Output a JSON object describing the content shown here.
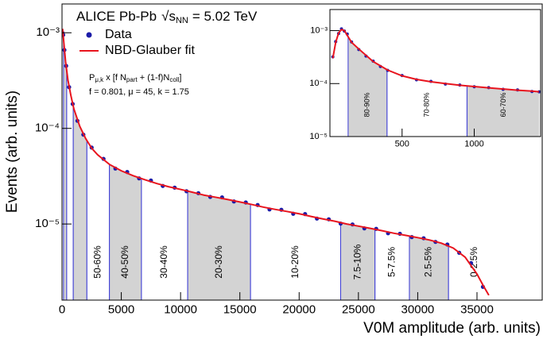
{
  "chart_data": [
    {
      "type": "line",
      "title": "ALICE Pb-Pb",
      "title_sqrt": "√s",
      "title_sub": "NN",
      "title_energy": "= 5.02 TeV",
      "formula": [
        {
          "text": "P",
          "sub": "μ,k"
        },
        {
          "text": " x [f N",
          "sub": "part"
        },
        {
          "text": " + (1-f)N",
          "sub": "coll"
        },
        {
          "text": "]"
        }
      ],
      "parameters": "f = 0.801, μ = 45, k = 1.75",
      "xlabel": "V0M amplitude (arb. units)",
      "ylabel": "Events (arb. units)",
      "xlim": [
        0,
        40500
      ],
      "ylim": [
        1.6e-06,
        0.002
      ],
      "log_y": true,
      "xticks": [
        0,
        5000,
        10000,
        15000,
        20000,
        25000,
        30000,
        35000
      ],
      "yticks": [
        {
          "value": 1e-05,
          "label": "10⁻⁵"
        },
        {
          "value": 0.0001,
          "label": "10⁻⁴"
        },
        {
          "value": 0.001,
          "label": "10⁻³"
        }
      ],
      "legend": "upper left",
      "class_fill": "#d3d3d3",
      "class_edge": "#3b3bd6",
      "classes": [
        {
          "label": null,
          "from": 126,
          "to": 396,
          "shaded": true
        },
        {
          "label": null,
          "from": 396,
          "to": 950,
          "shaded": false
        },
        {
          "label": null,
          "from": 950,
          "to": 2100,
          "shaded": true
        },
        {
          "label": "50-60%",
          "from": 2100,
          "to": 4000,
          "shaded": false
        },
        {
          "label": "40-50%",
          "from": 4000,
          "to": 6700,
          "shaded": true
        },
        {
          "label": "30-40%",
          "from": 6700,
          "to": 10600,
          "shaded": false
        },
        {
          "label": "20-30%",
          "from": 10600,
          "to": 15900,
          "shaded": true
        },
        {
          "label": "10-20%",
          "from": 15900,
          "to": 23500,
          "shaded": false
        },
        {
          "label": "7.5-10%",
          "from": 23500,
          "to": 26400,
          "shaded": true
        },
        {
          "label": "5-7.5%",
          "from": 26400,
          "to": 29300,
          "shaded": false
        },
        {
          "label": "2.5-5%",
          "from": 29300,
          "to": 32600,
          "shaded": true
        },
        {
          "label": "0-2.5%",
          "from": 32600,
          "to": 37000,
          "shaded": false
        }
      ],
      "series": [
        {
          "name": "Data",
          "color": "#1c1ca8",
          "style": "points",
          "x": [
            30,
            100,
            200,
            350,
            600,
            900,
            1300,
            1800,
            2500,
            3500,
            4500,
            5500,
            6500,
            7500,
            8500,
            9500,
            10500,
            11500,
            12500,
            13500,
            14500,
            15500,
            16500,
            17500,
            18500,
            19500,
            20500,
            21500,
            22500,
            23500,
            24500,
            25500,
            26500,
            27500,
            28500,
            29500,
            30500,
            31500,
            32500,
            33500,
            34500,
            35500
          ],
          "values": [
            0.001,
            0.00095,
            0.00066,
            0.00045,
            0.00027,
            0.00018,
            0.00012,
            8.6e-05,
            6.3e-05,
            4.8e-05,
            3.8e-05,
            3.5e-05,
            3e-05,
            2.85e-05,
            2.5e-05,
            2.4e-05,
            2.2e-05,
            2.1e-05,
            1.92e-05,
            1.9e-05,
            1.72e-05,
            1.68e-05,
            1.58e-05,
            1.42e-05,
            1.41e-05,
            1.28e-05,
            1.27e-05,
            1.14e-05,
            1.12e-05,
            1.01e-05,
            9.9e-06,
            9e-06,
            8.9e-06,
            8e-06,
            7.9e-06,
            7.3e-06,
            7.1e-06,
            6.5e-06,
            6.1e-06,
            5e-06,
            3.9e-06,
            2.2e-06
          ]
        },
        {
          "name": "NBD-Glauber fit",
          "color": "#e8141e",
          "style": "line",
          "x": [
            50,
            150,
            300,
            500,
            750,
            1000,
            1500,
            2000,
            2500,
            3000,
            4000,
            5000,
            6000,
            7000,
            8000,
            9000,
            10000,
            11000,
            12000,
            13000,
            14000,
            15000,
            16000,
            17000,
            18000,
            19000,
            20000,
            21000,
            22000,
            23000,
            24000,
            25000,
            26000,
            27000,
            28000,
            29000,
            30000,
            31000,
            32000,
            33000,
            34000,
            35000,
            35500,
            36000
          ],
          "values": [
            0.0011,
            0.0008,
            0.0005,
            0.00032,
            0.00022,
            0.00016,
            0.000105,
            7.8e-05,
            6.2e-05,
            5.3e-05,
            4.2e-05,
            3.6e-05,
            3.2e-05,
            2.9e-05,
            2.65e-05,
            2.45e-05,
            2.3e-05,
            2.15e-05,
            2e-05,
            1.9e-05,
            1.8e-05,
            1.7e-05,
            1.6e-05,
            1.5e-05,
            1.42e-05,
            1.35e-05,
            1.28e-05,
            1.2e-05,
            1.13e-05,
            1.07e-05,
            1e-05,
            9.5e-06,
            9e-06,
            8.5e-06,
            8e-06,
            7.6e-06,
            7.2e-06,
            6.8e-06,
            6.3e-06,
            5.6e-06,
            4.5e-06,
            3e-06,
            2.3e-06,
            1.8e-06
          ]
        }
      ]
    },
    {
      "type": "line",
      "xlim": [
        0,
        1460
      ],
      "ylim": [
        1e-05,
        0.0025
      ],
      "log_y": true,
      "xticks": [
        500,
        1000
      ],
      "yticks": [
        {
          "value": 1e-05,
          "label": "10⁻⁵"
        },
        {
          "value": 0.0001,
          "label": "10⁻⁴"
        },
        {
          "value": 0.001,
          "label": "10⁻³"
        }
      ],
      "class_fill": "#d3d3d3",
      "class_edge": "#3b3bd6",
      "classes": [
        {
          "label": "80-90%",
          "from": 126,
          "to": 396,
          "shaded": true
        },
        {
          "label": "70-80%",
          "from": 396,
          "to": 950,
          "shaded": false
        },
        {
          "label": "60-70%",
          "from": 950,
          "to": 2100,
          "shaded": true
        }
      ],
      "series": [
        {
          "name": "Data",
          "color": "#1c1ca8",
          "style": "points",
          "x": [
            20,
            40,
            60,
            80,
            100,
            120,
            150,
            200,
            250,
            300,
            350,
            400,
            500,
            600,
            700,
            800,
            900,
            1000,
            1100,
            1200,
            1300,
            1400,
            1450
          ],
          "values": [
            0.00032,
            0.00062,
            0.00088,
            0.00108,
            0.00098,
            0.00086,
            0.00061,
            0.00044,
            0.00033,
            0.000265,
            0.00021,
            0.000178,
            0.000142,
            0.000118,
            0.00011,
            9.8e-05,
            9.4e-05,
            8.7e-05,
            8.4e-05,
            7.8e-05,
            7.6e-05,
            7.1e-05,
            7e-05
          ]
        },
        {
          "name": "NBD-Glauber fit",
          "color": "#e8141e",
          "style": "line",
          "x": [
            20,
            40,
            60,
            80,
            100,
            150,
            200,
            300,
            400,
            500,
            600,
            700,
            800,
            900,
            1000,
            1100,
            1200,
            1300,
            1400,
            1450
          ],
          "values": [
            0.0003,
            0.0006,
            0.0009,
            0.00105,
            0.001,
            0.0006,
            0.00045,
            0.00026,
            0.00018,
            0.00014,
            0.00012,
            0.000108,
            0.0001,
            9.3e-05,
            8.8e-05,
            8.3e-05,
            7.9e-05,
            7.5e-05,
            7.2e-05,
            7e-05
          ]
        }
      ]
    }
  ]
}
